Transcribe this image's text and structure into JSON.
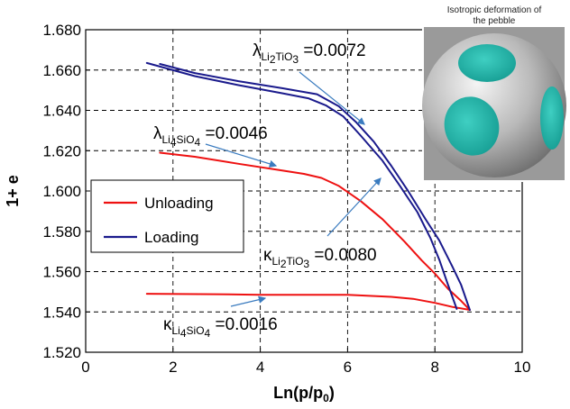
{
  "chart_data": {
    "type": "line",
    "xlabel": "Ln(p/p",
    "xlabel_sub": "0",
    "xlabel_close": ")",
    "ylabel": "1+ e",
    "xlim": [
      0,
      10
    ],
    "ylim": [
      1.52,
      1.68
    ],
    "x_ticks": [
      "0",
      "2",
      "4",
      "6",
      "8",
      "10"
    ],
    "y_ticks": [
      "1.520",
      "1.540",
      "1.560",
      "1.580",
      "1.600",
      "1.620",
      "1.640",
      "1.660",
      "1.680"
    ],
    "grid": "dashed",
    "legend_position": "left",
    "series": [
      {
        "name": "Unloading",
        "color": "#ee1111",
        "segments": [
          [
            [
              1.7,
              1.619
            ],
            [
              2.5,
              1.617
            ],
            [
              3.5,
              1.6135
            ],
            [
              4.4,
              1.6105
            ],
            [
              5.0,
              1.6085
            ],
            [
              5.4,
              1.6065
            ],
            [
              5.8,
              1.6025
            ],
            [
              6.3,
              1.595
            ],
            [
              6.8,
              1.586
            ],
            [
              7.3,
              1.575
            ],
            [
              7.7,
              1.5655
            ],
            [
              8.0,
              1.559
            ],
            [
              8.3,
              1.5515
            ],
            [
              8.6,
              1.5455
            ],
            [
              8.8,
              1.541
            ]
          ],
          [
            [
              1.4,
              1.549
            ],
            [
              3.0,
              1.5488
            ],
            [
              4.0,
              1.5485
            ],
            [
              5.0,
              1.5485
            ],
            [
              6.0,
              1.5485
            ],
            [
              7.0,
              1.5475
            ],
            [
              7.5,
              1.5465
            ],
            [
              8.0,
              1.5445
            ],
            [
              8.4,
              1.5425
            ],
            [
              8.8,
              1.541
            ]
          ]
        ]
      },
      {
        "name": "Loading",
        "color": "#1a1a8c",
        "segments": [
          [
            [
              1.4,
              1.6635
            ],
            [
              2.5,
              1.657
            ],
            [
              3.5,
              1.6525
            ],
            [
              4.5,
              1.6485
            ],
            [
              5.1,
              1.646
            ],
            [
              5.5,
              1.6425
            ],
            [
              5.9,
              1.637
            ],
            [
              6.3,
              1.6275
            ],
            [
              6.8,
              1.615
            ],
            [
              7.2,
              1.6025
            ],
            [
              7.6,
              1.5895
            ],
            [
              7.9,
              1.5765
            ],
            [
              8.1,
              1.566
            ],
            [
              8.3,
              1.5535
            ],
            [
              8.5,
              1.5415
            ]
          ],
          [
            [
              1.7,
              1.663
            ],
            [
              2.5,
              1.6585
            ],
            [
              3.5,
              1.6545
            ],
            [
              4.5,
              1.651
            ],
            [
              5.3,
              1.648
            ],
            [
              5.8,
              1.642
            ],
            [
              6.2,
              1.634
            ],
            [
              6.6,
              1.6245
            ],
            [
              7.0,
              1.6125
            ],
            [
              7.4,
              1.5995
            ],
            [
              7.8,
              1.5855
            ],
            [
              8.1,
              1.5755
            ],
            [
              8.4,
              1.5625
            ],
            [
              8.6,
              1.5535
            ],
            [
              8.8,
              1.541
            ]
          ]
        ]
      }
    ]
  },
  "annotations": {
    "lambda_li2tio3": {
      "symbol": "λ",
      "sub1": "Li",
      "sub2": "2",
      "sub3": "TiO",
      "sub4": "3",
      "value": " =0.0072"
    },
    "lambda_li4sio4": {
      "symbol": "λ",
      "sub1": "Li",
      "sub2": "4",
      "sub3": "SiO",
      "sub4": "4",
      "value": " =0.0046"
    },
    "kappa_li2tio3": {
      "symbol": "κ",
      "sub1": "Li",
      "sub2": "2",
      "sub3": "TiO",
      "sub4": "3",
      "value": " =0.0080"
    },
    "kappa_li4sio4": {
      "symbol": "κ",
      "sub1": "Li",
      "sub2": "4",
      "sub3": "SiO",
      "sub4": "4",
      "value": " =0.0016"
    }
  },
  "inset": {
    "caption_line1": "Isotropic deformation of",
    "caption_line2": "the pebble",
    "sphere_color": "#b9b9b9",
    "face_color": "#22b5aa"
  }
}
